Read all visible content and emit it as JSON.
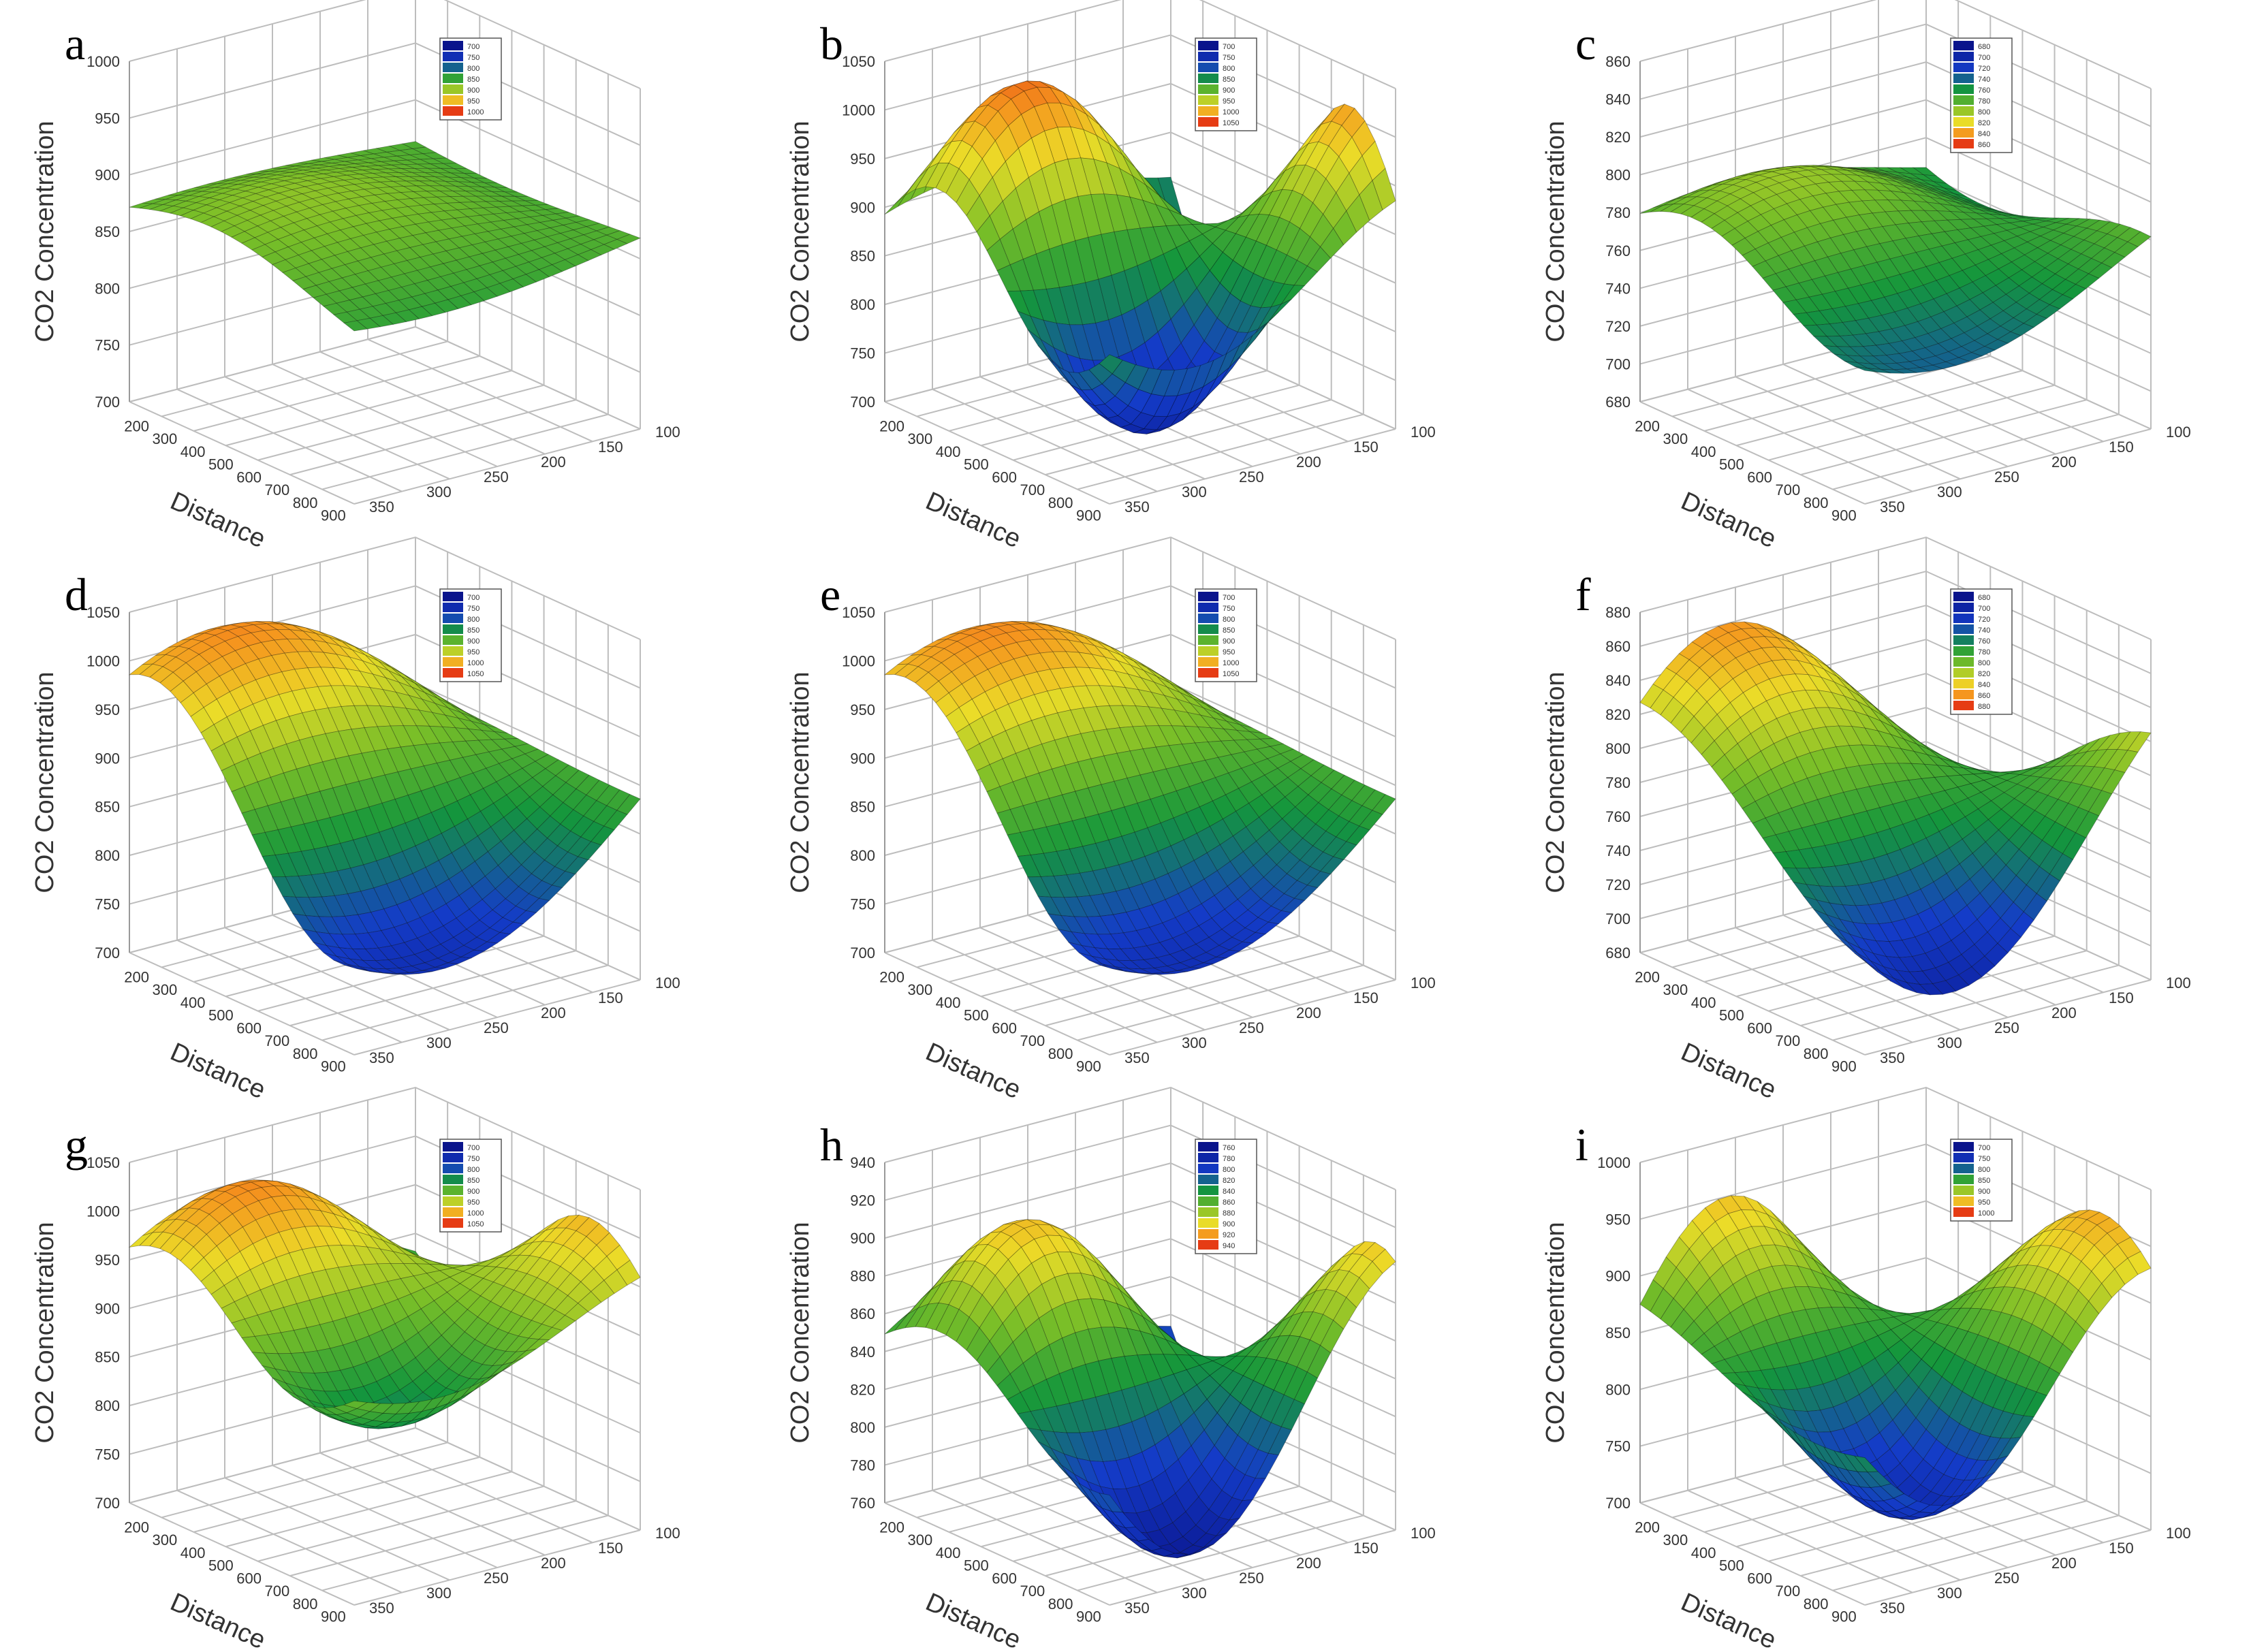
{
  "figure": {
    "common_ylabel": "CO2 Concentration",
    "common_xlabel": "Distance"
  },
  "chart_data": [
    {
      "panel_label": "a",
      "type": "surface3d",
      "zlim": [
        700,
        1000
      ],
      "z_ticks": [
        "700",
        "750",
        "800",
        "850",
        "900",
        "950",
        "1000"
      ],
      "x_ticks": [
        "200",
        "300",
        "400",
        "500",
        "600",
        "700",
        "800",
        "900"
      ],
      "y_ticks": [
        "100",
        "150",
        "200",
        "250",
        "300",
        "350"
      ],
      "legend": [
        "700",
        "750",
        "800",
        "850",
        "900",
        "950",
        "1000"
      ],
      "surface": {
        "base": 865,
        "amp": 30,
        "fx": 1.1,
        "fy": 0.8,
        "phase": 0.3
      }
    },
    {
      "panel_label": "b",
      "type": "surface3d",
      "zlim": [
        700,
        1050
      ],
      "z_ticks": [
        "700",
        "750",
        "800",
        "850",
        "900",
        "950",
        "1000",
        "1050"
      ],
      "x_ticks": [
        "200",
        "300",
        "400",
        "500",
        "600",
        "700",
        "800",
        "900"
      ],
      "y_ticks": [
        "100",
        "150",
        "200",
        "250",
        "300",
        "350"
      ],
      "legend": [
        "700",
        "750",
        "800",
        "850",
        "900",
        "950",
        "1000",
        "1050"
      ],
      "surface": {
        "base": 880,
        "amp": 150,
        "fx": 1.8,
        "fy": 1.2,
        "phase": 0.2
      }
    },
    {
      "panel_label": "c",
      "type": "surface3d",
      "zlim": [
        680,
        860
      ],
      "z_ticks": [
        "680",
        "700",
        "720",
        "740",
        "760",
        "780",
        "800",
        "820",
        "840",
        "860"
      ],
      "x_ticks": [
        "200",
        "300",
        "400",
        "500",
        "600",
        "700",
        "800",
        "900"
      ],
      "y_ticks": [
        "100",
        "150",
        "200",
        "250",
        "300",
        "350"
      ],
      "legend": [
        "680",
        "700",
        "720",
        "740",
        "760",
        "780",
        "800",
        "820",
        "840",
        "860"
      ],
      "surface": {
        "base": 770,
        "amp": 30,
        "fx": 1.4,
        "fy": 0.9,
        "phase": 0.5
      }
    },
    {
      "panel_label": "d",
      "type": "surface3d",
      "zlim": [
        700,
        1050
      ],
      "z_ticks": [
        "700",
        "750",
        "800",
        "850",
        "900",
        "950",
        "1000",
        "1050"
      ],
      "x_ticks": [
        "200",
        "300",
        "400",
        "500",
        "600",
        "700",
        "800",
        "900"
      ],
      "y_ticks": [
        "100",
        "150",
        "200",
        "250",
        "300",
        "350"
      ],
      "legend": [
        "700",
        "750",
        "800",
        "850",
        "900",
        "950",
        "1000",
        "1050"
      ],
      "surface": {
        "base": 890,
        "amp": 130,
        "fx": 1.2,
        "fy": 0.7,
        "phase": 1.2
      }
    },
    {
      "panel_label": "e",
      "type": "surface3d",
      "zlim": [
        700,
        1050
      ],
      "z_ticks": [
        "700",
        "750",
        "800",
        "850",
        "900",
        "950",
        "1000",
        "1050"
      ],
      "x_ticks": [
        "200",
        "300",
        "400",
        "500",
        "600",
        "700",
        "800",
        "900"
      ],
      "y_ticks": [
        "100",
        "150",
        "200",
        "250",
        "300",
        "350"
      ],
      "legend": [
        "700",
        "750",
        "800",
        "850",
        "900",
        "950",
        "1000",
        "1050"
      ],
      "surface": {
        "base": 890,
        "amp": 130,
        "fx": 1.2,
        "fy": 0.7,
        "phase": 1.2
      }
    },
    {
      "panel_label": "f",
      "type": "surface3d",
      "zlim": [
        680,
        880
      ],
      "z_ticks": [
        "680",
        "700",
        "720",
        "740",
        "760",
        "780",
        "800",
        "820",
        "840",
        "860",
        "880"
      ],
      "x_ticks": [
        "200",
        "300",
        "400",
        "500",
        "600",
        "700",
        "800",
        "900"
      ],
      "y_ticks": [
        "100",
        "150",
        "200",
        "250",
        "300",
        "350"
      ],
      "legend": [
        "680",
        "700",
        "720",
        "740",
        "760",
        "780",
        "800",
        "820",
        "840",
        "860",
        "880"
      ],
      "surface": {
        "base": 780,
        "amp": 80,
        "fx": 0.9,
        "fy": 1.0,
        "phase": 1.6
      }
    },
    {
      "panel_label": "g",
      "type": "surface3d",
      "zlim": [
        700,
        1050
      ],
      "z_ticks": [
        "700",
        "750",
        "800",
        "850",
        "900",
        "950",
        "1000",
        "1050"
      ],
      "x_ticks": [
        "200",
        "300",
        "400",
        "500",
        "600",
        "700",
        "800",
        "900"
      ],
      "y_ticks": [
        "100",
        "150",
        "200",
        "250",
        "300",
        "350"
      ],
      "legend": [
        "700",
        "750",
        "800",
        "850",
        "900",
        "950",
        "1000",
        "1050"
      ],
      "surface": {
        "base": 930,
        "amp": 90,
        "fx": 1.6,
        "fy": 1.1,
        "phase": 0.8
      }
    },
    {
      "panel_label": "h",
      "type": "surface3d",
      "zlim": [
        760,
        940
      ],
      "z_ticks": [
        "760",
        "780",
        "800",
        "820",
        "840",
        "860",
        "880",
        "900",
        "920",
        "940"
      ],
      "x_ticks": [
        "200",
        "300",
        "400",
        "500",
        "600",
        "700",
        "800",
        "900"
      ],
      "y_ticks": [
        "100",
        "150",
        "200",
        "250",
        "300",
        "350"
      ],
      "legend": [
        "760",
        "780",
        "800",
        "820",
        "840",
        "860",
        "880",
        "900",
        "920",
        "940"
      ],
      "surface": {
        "base": 840,
        "amp": 70,
        "fx": 1.5,
        "fy": 1.3,
        "phase": 0.4
      }
    },
    {
      "panel_label": "i",
      "type": "surface3d",
      "zlim": [
        700,
        1000
      ],
      "z_ticks": [
        "700",
        "750",
        "800",
        "850",
        "900",
        "950",
        "1000"
      ],
      "x_ticks": [
        "200",
        "300",
        "400",
        "500",
        "600",
        "700",
        "800",
        "900"
      ],
      "y_ticks": [
        "100",
        "150",
        "200",
        "250",
        "300",
        "350"
      ],
      "legend": [
        "700",
        "750",
        "800",
        "850",
        "900",
        "950",
        "1000"
      ],
      "surface": {
        "base": 850,
        "amp": 110,
        "fx": 1.1,
        "fy": 1.4,
        "phase": 2.0
      }
    }
  ]
}
